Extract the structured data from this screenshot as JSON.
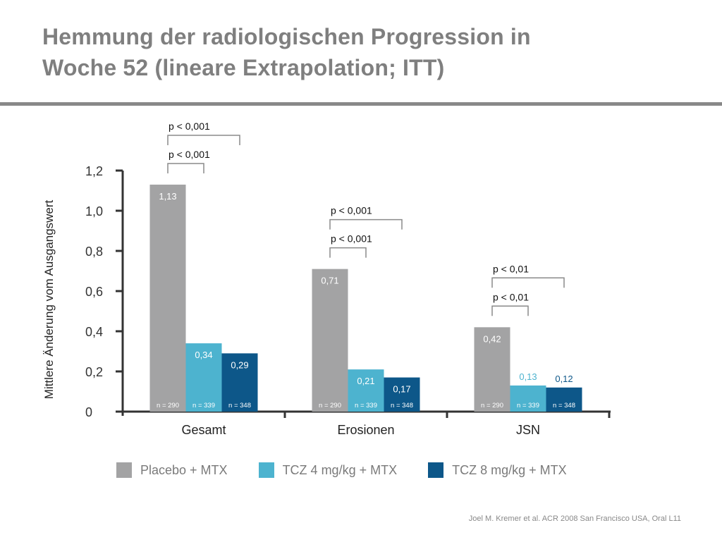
{
  "title": {
    "line1": "Hemmung der radiologischen Progression in",
    "line2": "Woche 52 (lineare Extrapolation; ITT)"
  },
  "colors": {
    "placebo": "#a3a3a4",
    "tcz4": "#4db3cf",
    "tcz8": "#0d5789",
    "title": "#7f7f7f",
    "axis": "#333333"
  },
  "legend": [
    {
      "name": "Placebo + MTX",
      "color": "#a3a3a4"
    },
    {
      "name": "TCZ 4 mg/kg + MTX",
      "color": "#4db3cf"
    },
    {
      "name": "TCZ 8 mg/kg + MTX",
      "color": "#0d5789"
    }
  ],
  "footnote": "Joel M. Kremer et al. ACR 2008 San Francisco USA, Oral L11",
  "chart_data": {
    "type": "bar",
    "title": "",
    "xlabel": "",
    "ylabel": "Mittlere Änderung vom Ausgangswert",
    "ylim": [
      0,
      1.2
    ],
    "yticks": [
      "0",
      "0,2",
      "0,4",
      "0,6",
      "0,8",
      "1,0",
      "1,2"
    ],
    "categories": [
      "Gesamt",
      "Erosionen",
      "JSN"
    ],
    "series": [
      {
        "name": "Placebo + MTX",
        "values": [
          1.13,
          0.71,
          0.42
        ],
        "labels": [
          "1,13",
          "0,71",
          "0,42"
        ],
        "n": [
          "n = 290",
          "n = 290",
          "n = 290"
        ]
      },
      {
        "name": "TCZ 4 mg/kg + MTX",
        "values": [
          0.34,
          0.21,
          0.13
        ],
        "labels": [
          "0,34",
          "0,21",
          "0,13"
        ],
        "n": [
          "n = 339",
          "n = 339",
          "n = 339"
        ]
      },
      {
        "name": "TCZ 8 mg/kg + MTX",
        "values": [
          0.29,
          0.17,
          0.12
        ],
        "labels": [
          "0,29",
          "0,17",
          "0,12"
        ],
        "n": [
          "n = 348",
          "n = 348",
          "n = 348"
        ]
      }
    ],
    "annotations": [
      {
        "category": 0,
        "from_series": 0,
        "to_series": 1,
        "text": "p < 0,001"
      },
      {
        "category": 0,
        "from_series": 0,
        "to_series": 2,
        "text": "p < 0,001"
      },
      {
        "category": 1,
        "from_series": 0,
        "to_series": 1,
        "text": "p < 0,001"
      },
      {
        "category": 1,
        "from_series": 0,
        "to_series": 2,
        "text": "p < 0,001"
      },
      {
        "category": 2,
        "from_series": 0,
        "to_series": 1,
        "text": "p < 0,01"
      },
      {
        "category": 2,
        "from_series": 0,
        "to_series": 2,
        "text": "p < 0,01"
      }
    ],
    "grid": false,
    "legend_position": "bottom"
  }
}
